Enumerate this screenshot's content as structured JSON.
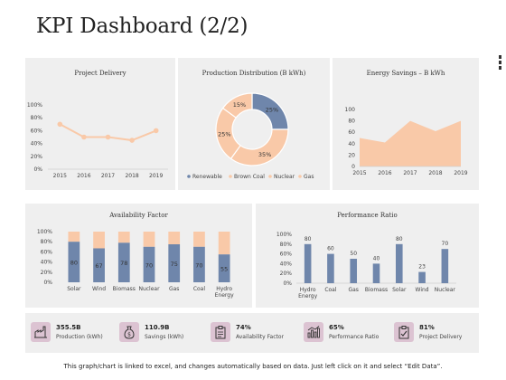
{
  "page": {
    "title": "KPI Dashboard (2/2)"
  },
  "colors": {
    "blue": "#6f86ab",
    "peach": "#f9c9a8",
    "panel": "#efefef",
    "icon_bg": "#dcc3d2",
    "grid": "#dddddd"
  },
  "chart_data": [
    {
      "type": "line",
      "title": "Project Delivery",
      "x": [
        "2015",
        "2016",
        "2017",
        "2018",
        "2019"
      ],
      "values": [
        0.7,
        0.5,
        0.5,
        0.45,
        0.6
      ],
      "ylim": [
        0,
        1
      ],
      "yticks": [
        "0%",
        "20%",
        "40%",
        "60%",
        "80%",
        "100%"
      ],
      "grid": false
    },
    {
      "type": "pie",
      "title": "Production Distribution (B kWh)",
      "labels": [
        "Renewable",
        "Brown Coal",
        "Nuclear",
        "Gas"
      ],
      "values": [
        25,
        35,
        25,
        15
      ],
      "display_labels": [
        "25%",
        "35%",
        "25%",
        "15%"
      ],
      "legend": "bottom",
      "donut": true
    },
    {
      "type": "area",
      "title": "Energy  Savings – B kWh",
      "x": [
        "2015",
        "2016",
        "2017",
        "2018",
        "2019"
      ],
      "values": [
        50,
        42,
        80,
        62,
        80
      ],
      "ylim": [
        0,
        100
      ],
      "yticks": [
        "0",
        "20",
        "40",
        "60",
        "80",
        "100"
      ]
    },
    {
      "type": "bar",
      "title": "Availability Factor",
      "stacked": true,
      "categories": [
        "Solar",
        "Wind",
        "Biomass",
        "Nuclear",
        "Gas",
        "Coal",
        "Hydro Energy"
      ],
      "values": [
        80,
        67,
        78,
        70,
        75,
        70,
        55
      ],
      "display_labels": [
        "80",
        "67",
        "78",
        "70",
        "75",
        "70",
        "55"
      ],
      "ylim": [
        0,
        1
      ],
      "yticks": [
        "0%",
        "20%",
        "40%",
        "60%",
        "80%",
        "100%"
      ]
    },
    {
      "type": "bar",
      "title": "Performance Ratio",
      "categories": [
        "Hydro Energy",
        "Coal",
        "Gas",
        "Biomass",
        "Solar",
        "Wind",
        "Nuclear"
      ],
      "values": [
        80,
        60,
        50,
        40,
        80,
        23,
        70
      ],
      "ylim": [
        0,
        100
      ],
      "yticks": [
        "0%",
        "20%",
        "40%",
        "60%",
        "80%",
        "100%"
      ]
    }
  ],
  "kpis": [
    {
      "value": "355.5B",
      "label": "Production (kWh)",
      "icon": "factory-icon"
    },
    {
      "value": "110.9B",
      "label": "Savings (kWh)",
      "icon": "money-bag-icon"
    },
    {
      "value": "74%",
      "label": "Availability Factor",
      "icon": "clipboard-icon"
    },
    {
      "value": "65%",
      "label": "Performance Ratio",
      "icon": "bar-chart-icon"
    },
    {
      "value": "81%",
      "label": "Project Delivery",
      "icon": "clipboard-check-icon"
    }
  ],
  "footer": {
    "note": "This graph/chart is linked to excel, and changes automatically based on data. Just left click on it and select “Edit Data”."
  }
}
